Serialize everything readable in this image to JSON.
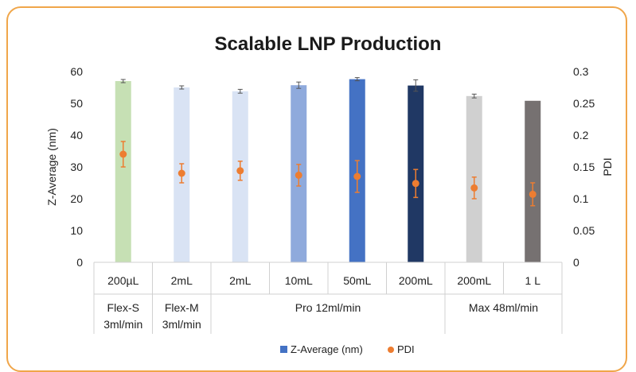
{
  "chart_data": {
    "type": "bar",
    "title": "Scalable LNP Production",
    "ylabel": "Z-Average (nm)",
    "y2label": "PDI",
    "ylim": [
      0,
      60
    ],
    "y2lim": [
      0,
      0.3
    ],
    "yticks": [
      "0",
      "10",
      "20",
      "30",
      "40",
      "50",
      "60"
    ],
    "y2ticks": [
      "0",
      "0.05",
      "0.1",
      "0.15",
      "0.2",
      "0.25",
      "0.3"
    ],
    "categories": [
      "200µL",
      "2mL",
      "2mL",
      "10mL",
      "50mL",
      "200mL",
      "200mL",
      "1 L"
    ],
    "groups": [
      {
        "label_line1": "Flex-S",
        "label_line2": "3ml/min",
        "span": [
          0,
          0
        ]
      },
      {
        "label_line1": "Flex-M",
        "label_line2": "3ml/min",
        "span": [
          1,
          1
        ]
      },
      {
        "label_line1": "Pro 12ml/min",
        "label_line2": "",
        "span": [
          2,
          5
        ]
      },
      {
        "label_line1": "Max 48ml/min",
        "label_line2": "",
        "span": [
          6,
          7
        ]
      }
    ],
    "series": [
      {
        "name": "Z-Average (nm)",
        "kind": "bar",
        "axis": "left",
        "values": [
          57.0,
          55.0,
          53.8,
          55.7,
          57.6,
          55.6,
          52.3,
          50.8
        ],
        "errors": [
          0.5,
          0.5,
          0.6,
          1.0,
          0.5,
          1.8,
          0.6,
          0.0
        ],
        "colors": [
          "#c6e0b4",
          "#d9e3f4",
          "#d9e3f4",
          "#8faadc",
          "#4472c4",
          "#203864",
          "#d0d0d0",
          "#767171"
        ]
      },
      {
        "name": "PDI",
        "kind": "point",
        "axis": "right",
        "color": "#ed7d31",
        "values": [
          0.17,
          0.14,
          0.144,
          0.137,
          0.135,
          0.124,
          0.117,
          0.107
        ],
        "errors": [
          0.02,
          0.015,
          0.015,
          0.017,
          0.025,
          0.022,
          0.017,
          0.018
        ]
      }
    ],
    "legend_position": "bottom",
    "legend_colors": {
      "bar": "#4472c4",
      "point": "#ed7d31"
    },
    "grid": false
  }
}
